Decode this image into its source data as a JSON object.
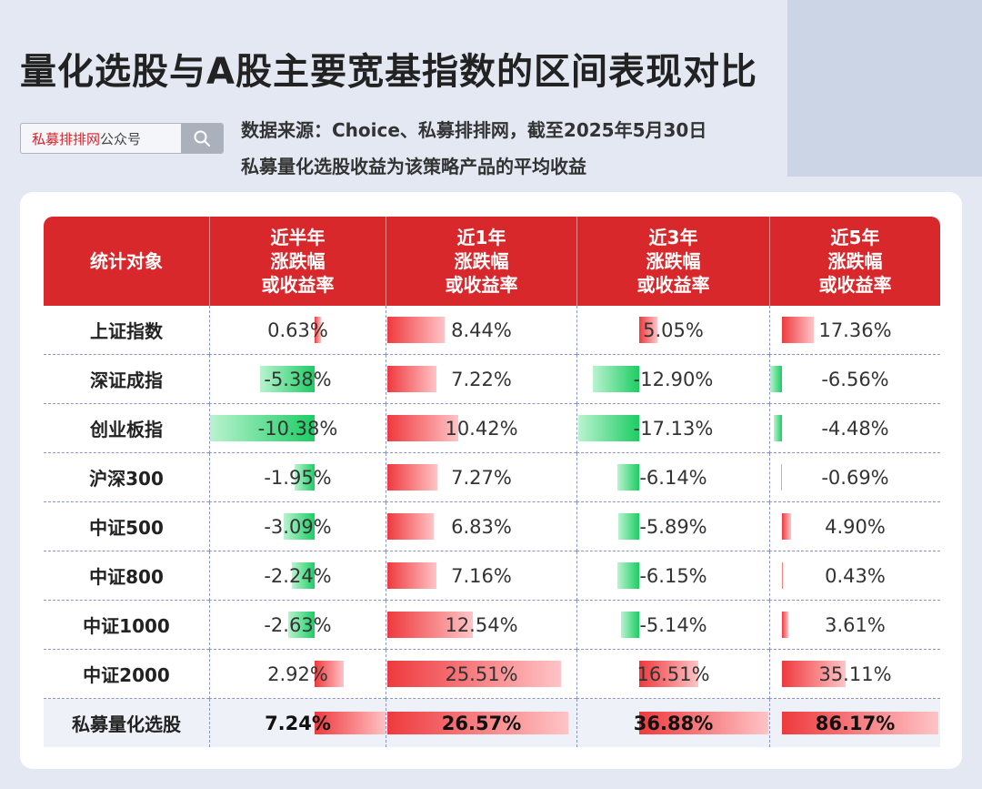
{
  "title": "量化选股与A股主要宽基指数的区间表现对比",
  "search": {
    "brand": "私募排排网",
    "suffix": "公众号"
  },
  "source_lines": [
    "数据来源：Choice、私募排排网，截至2025年5月30日",
    "私募量化选股收益为该策略产品的平均收益"
  ],
  "colors": {
    "header": "#d9282c",
    "positive": "#ee3a3e",
    "negative": "#1ccd63"
  },
  "chart_data": {
    "type": "table",
    "columns": [
      {
        "label": "统计对象"
      },
      {
        "label": "近半年\n涨跌幅\n或收益率"
      },
      {
        "label": "近1年\n涨跌幅\n或收益率"
      },
      {
        "label": "近3年\n涨跌幅\n或收益率"
      },
      {
        "label": "近5年\n涨跌幅\n或收益率"
      }
    ],
    "rows": [
      {
        "name": "上证指数",
        "values": [
          0.63,
          8.44,
          5.05,
          17.36
        ]
      },
      {
        "name": "深证成指",
        "values": [
          -5.38,
          7.22,
          -12.9,
          -6.56
        ]
      },
      {
        "name": "创业板指",
        "values": [
          -10.38,
          10.42,
          -17.13,
          -4.48
        ]
      },
      {
        "name": "沪深300",
        "values": [
          -1.95,
          7.27,
          -6.14,
          -0.69
        ]
      },
      {
        "name": "中证500",
        "values": [
          -3.09,
          6.83,
          -5.89,
          4.9
        ]
      },
      {
        "name": "中证800",
        "values": [
          -2.24,
          7.16,
          -6.15,
          0.43
        ]
      },
      {
        "name": "中证1000",
        "values": [
          -2.63,
          12.54,
          -5.14,
          3.61
        ]
      },
      {
        "name": "中证2000",
        "values": [
          2.92,
          25.51,
          16.51,
          35.11
        ]
      },
      {
        "name": "私募量化选股",
        "values": [
          7.24,
          26.57,
          36.88,
          86.17
        ]
      }
    ],
    "display": [
      [
        "0.63%",
        "8.44%",
        "5.05%",
        "17.36%"
      ],
      [
        "-5.38%",
        "7.22%",
        "-12.90%",
        "-6.56%"
      ],
      [
        "-10.38%",
        "10.42%",
        "-17.13%",
        "-4.48%"
      ],
      [
        "-1.95%",
        "7.27%",
        "-6.14%",
        "-0.69%"
      ],
      [
        "-3.09%",
        "6.83%",
        "-5.89%",
        "4.90%"
      ],
      [
        "-2.24%",
        "7.16%",
        "-6.15%",
        "0.43%"
      ],
      [
        "-2.63%",
        "12.54%",
        "-5.14%",
        "3.61%"
      ],
      [
        "2.92%",
        "25.51%",
        "16.51%",
        "35.11%"
      ],
      [
        "7.24%",
        "26.57%",
        "36.88%",
        "86.17%"
      ]
    ],
    "highlight_row": "私募量化选股"
  }
}
